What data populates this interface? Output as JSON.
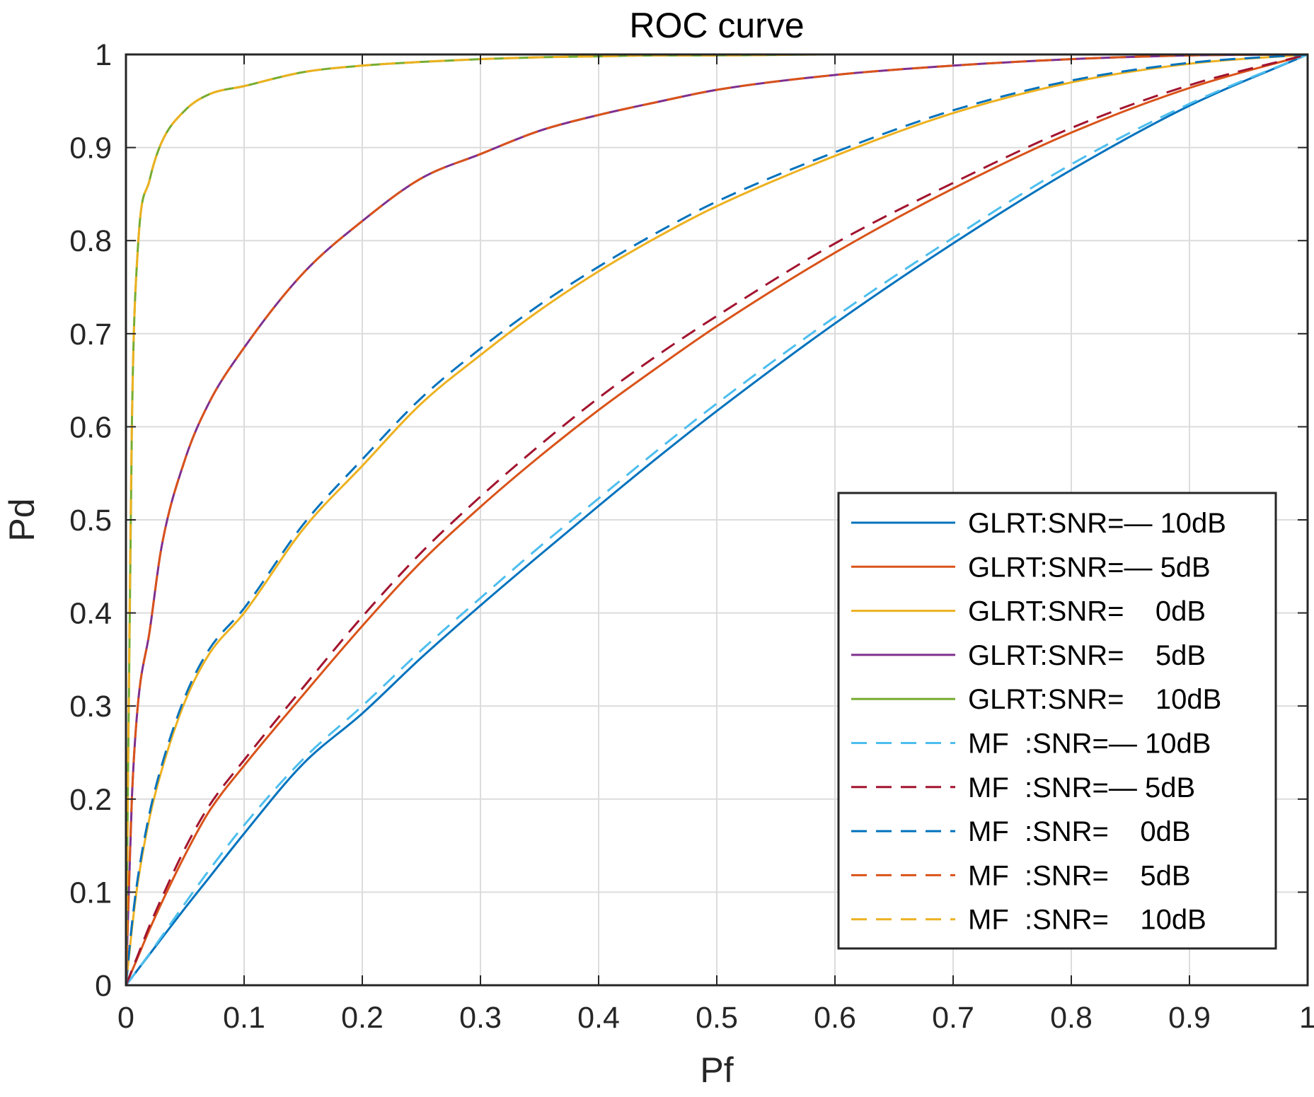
{
  "chart_data": {
    "type": "line",
    "title": "ROC curve",
    "xlabel": "Pf",
    "ylabel": "Pd",
    "xlim": [
      0,
      1
    ],
    "ylim": [
      0,
      1
    ],
    "grid": true,
    "legend_position": "bottom-right",
    "x_ticks": [
      "0",
      "0.1",
      "0.2",
      "0.3",
      "0.4",
      "0.5",
      "0.6",
      "0.7",
      "0.8",
      "0.9",
      "1"
    ],
    "y_ticks": [
      "0",
      "0.1",
      "0.2",
      "0.3",
      "0.4",
      "0.5",
      "0.6",
      "0.7",
      "0.8",
      "0.9",
      "1"
    ],
    "x": [
      0,
      0.005,
      0.01,
      0.02,
      0.03,
      0.05,
      0.07,
      0.1,
      0.15,
      0.2,
      0.25,
      0.3,
      0.35,
      0.4,
      0.45,
      0.5,
      0.6,
      0.7,
      0.8,
      0.9,
      1.0
    ],
    "series": [
      {
        "name": "GLRT:SNR=— 10dB",
        "color": "#0072BD",
        "dash": "solid",
        "values": [
          0,
          0.0083,
          0.0167,
          0.0333,
          0.05,
          0.083,
          0.115,
          0.163,
          0.238,
          0.292,
          0.352,
          0.408,
          0.462,
          0.515,
          0.567,
          0.617,
          0.711,
          0.797,
          0.876,
          0.945,
          1.0
        ]
      },
      {
        "name": "GLRT:SNR=— 5dB",
        "color": "#D95319",
        "dash": "solid",
        "values": [
          0,
          0.015,
          0.03,
          0.06,
          0.088,
          0.14,
          0.186,
          0.236,
          0.312,
          0.386,
          0.455,
          0.514,
          0.568,
          0.618,
          0.664,
          0.708,
          0.787,
          0.856,
          0.916,
          0.964,
          1.0
        ]
      },
      {
        "name": "GLRT:SNR=    0dB",
        "color": "#EDB120",
        "dash": "solid",
        "values": [
          0,
          0.06,
          0.11,
          0.18,
          0.23,
          0.305,
          0.355,
          0.4,
          0.49,
          0.558,
          0.625,
          0.677,
          0.725,
          0.767,
          0.804,
          0.837,
          0.891,
          0.937,
          0.97,
          0.99,
          1.0
        ]
      },
      {
        "name": "GLRT:SNR=    5dB",
        "color": "#7E2F8E",
        "dash": "solid",
        "values": [
          0,
          0.2,
          0.3,
          0.38,
          0.47,
          0.565,
          0.625,
          0.685,
          0.765,
          0.821,
          0.867,
          0.893,
          0.918,
          0.935,
          0.949,
          0.962,
          0.978,
          0.988,
          0.995,
          0.999,
          1.0
        ]
      },
      {
        "name": "GLRT:SNR=    10dB",
        "color": "#77AC30",
        "dash": "solid",
        "values": [
          0,
          0.6,
          0.79,
          0.865,
          0.905,
          0.94,
          0.957,
          0.966,
          0.981,
          0.988,
          0.992,
          0.995,
          0.997,
          0.998,
          0.999,
          0.999,
          1.0,
          1.0,
          1.0,
          1.0,
          1.0
        ]
      },
      {
        "name": "MF  :SNR=— 10dB",
        "color": "#4DBEEE",
        "dash": "dashed",
        "values": [
          0,
          0.0085,
          0.017,
          0.034,
          0.052,
          0.088,
          0.123,
          0.172,
          0.243,
          0.3,
          0.36,
          0.416,
          0.471,
          0.523,
          0.575,
          0.625,
          0.718,
          0.803,
          0.882,
          0.947,
          1.0
        ]
      },
      {
        "name": "MF  :SNR=— 5dB",
        "color": "#A2142F",
        "dash": "dashed",
        "values": [
          0,
          0.016,
          0.032,
          0.064,
          0.093,
          0.147,
          0.192,
          0.242,
          0.32,
          0.396,
          0.465,
          0.525,
          0.58,
          0.631,
          0.677,
          0.719,
          0.797,
          0.862,
          0.921,
          0.967,
          1.0
        ]
      },
      {
        "name": "MF  :SNR=    0dB",
        "color": "#0072BD",
        "dash": "dashed",
        "values": [
          0,
          0.065,
          0.115,
          0.185,
          0.235,
          0.31,
          0.36,
          0.405,
          0.495,
          0.565,
          0.631,
          0.684,
          0.731,
          0.772,
          0.809,
          0.842,
          0.895,
          0.94,
          0.972,
          0.991,
          1.0
        ]
      },
      {
        "name": "MF  :SNR=    5dB",
        "color": "#D95319",
        "dash": "dashed",
        "values": [
          0,
          0.2,
          0.3,
          0.38,
          0.47,
          0.565,
          0.625,
          0.685,
          0.765,
          0.821,
          0.867,
          0.893,
          0.918,
          0.935,
          0.949,
          0.962,
          0.978,
          0.988,
          0.995,
          0.999,
          1.0
        ]
      },
      {
        "name": "MF  :SNR=    10dB",
        "color": "#EDB120",
        "dash": "dashed",
        "values": [
          0,
          0.6,
          0.79,
          0.865,
          0.905,
          0.94,
          0.957,
          0.966,
          0.981,
          0.988,
          0.992,
          0.995,
          0.997,
          0.998,
          0.999,
          0.999,
          1.0,
          1.0,
          1.0,
          1.0,
          1.0
        ]
      }
    ]
  }
}
